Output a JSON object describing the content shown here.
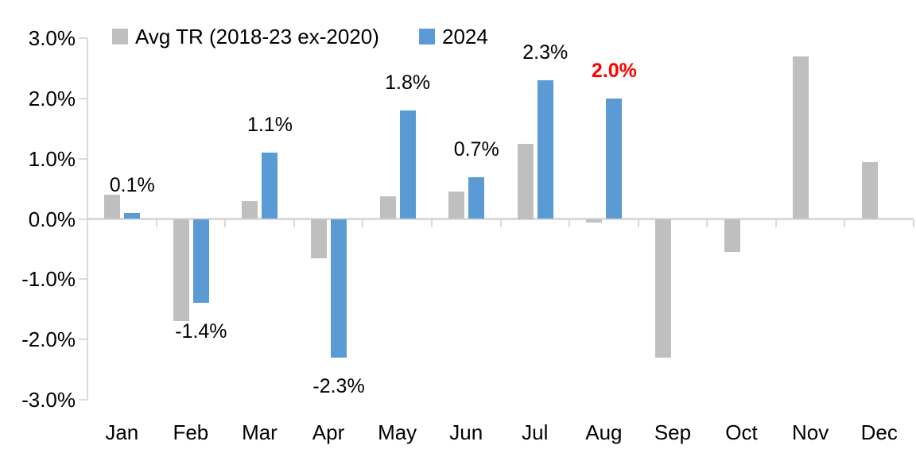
{
  "legend": {
    "items": [
      {
        "label": "Avg TR (2018-23 ex-2020)",
        "color": "#bfbfbf"
      },
      {
        "label": "2024",
        "color": "#5b9bd5"
      }
    ]
  },
  "chart_data": {
    "type": "bar",
    "title": "",
    "xlabel": "",
    "ylabel": "",
    "categories": [
      "Jan",
      "Feb",
      "Mar",
      "Apr",
      "May",
      "Jun",
      "Jul",
      "Aug",
      "Sep",
      "Oct",
      "Nov",
      "Dec"
    ],
    "series": [
      {
        "name": "Avg TR (2018-23 ex-2020)",
        "color": "#bfbfbf",
        "values": [
          0.4,
          -1.7,
          0.3,
          -0.65,
          0.37,
          0.45,
          1.25,
          -0.06,
          -2.3,
          -0.55,
          2.7,
          0.95
        ],
        "data_labels": [
          null,
          null,
          null,
          null,
          null,
          null,
          null,
          null,
          null,
          null,
          null,
          null
        ]
      },
      {
        "name": "2024",
        "color": "#5b9bd5",
        "values": [
          0.1,
          -1.4,
          1.1,
          -2.3,
          1.8,
          0.7,
          2.3,
          2.0,
          null,
          null,
          null,
          null
        ],
        "data_labels": [
          "0.1%",
          "-1.4%",
          "1.1%",
          "-2.3%",
          "1.8%",
          "0.7%",
          "2.3%",
          "2.0%",
          null,
          null,
          null,
          null
        ],
        "label_colors": [
          "#000000",
          "#000000",
          "#000000",
          "#000000",
          "#000000",
          "#000000",
          "#000000",
          "#ff0000",
          null,
          null,
          null,
          null
        ],
        "highlight_index": 7
      }
    ],
    "ylim": [
      -3,
      3
    ],
    "ytick_labels": [
      "3.0%",
      "2.0%",
      "1.0%",
      "0.0%",
      "-1.0%",
      "-2.0%",
      "-3.0%"
    ],
    "ytick_values": [
      3,
      2,
      1,
      0,
      -1,
      -2,
      -3
    ],
    "grid": false,
    "legend_position": "top",
    "axis_color": "#d9d9d9",
    "highlight_color": "#ff0000"
  }
}
